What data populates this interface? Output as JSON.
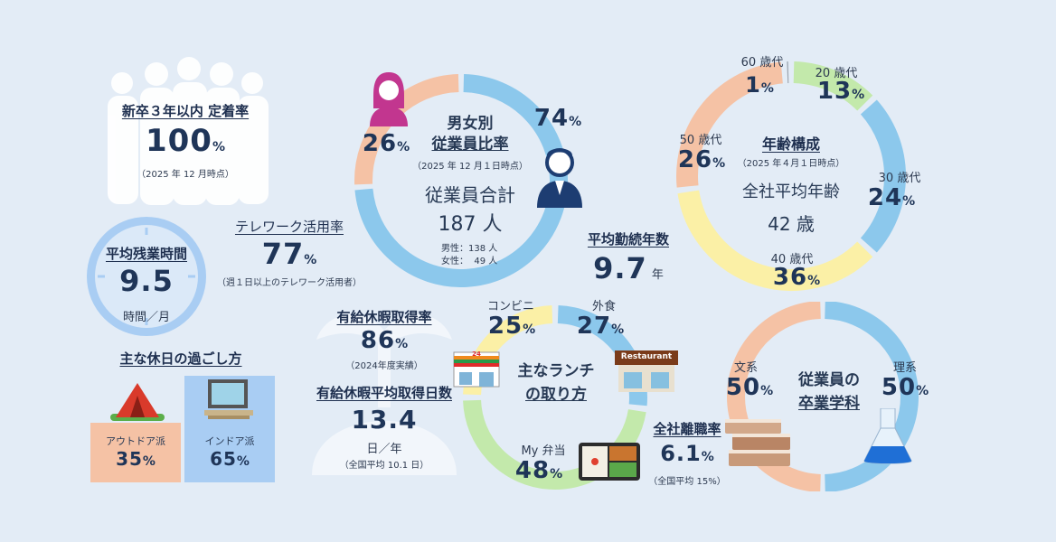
{
  "colors": {
    "bg": "#e3ecf6",
    "blue": "#8cc8ec",
    "peach": "#f5c2a5",
    "green": "#c3e9ab",
    "yellow": "#fbf0a6",
    "gray": "#9aa3ad",
    "lightblue": "#a9cdf3"
  },
  "retention": {
    "title": "新卒３年以内 定着率",
    "value": "100",
    "unit": "%",
    "note": "（2025 年 12 月時点）"
  },
  "overtime": {
    "title": "平均残業時間",
    "value": "9.5",
    "unit": "時間／月"
  },
  "telework": {
    "title": "テレワーク活用率",
    "value": "77",
    "unit": "%",
    "note": "（週１日以上のテレワーク活用者）"
  },
  "holiday": {
    "title": "主な休日の過ごし方",
    "outdoor_label": "アウトドア派",
    "outdoor_value": "35",
    "indoor_label": "インドア派",
    "indoor_value": "65",
    "unit": "%"
  },
  "gender": {
    "title1": "男女別",
    "title2": "従業員比率",
    "note": "（2025 年 12 月１日時点）",
    "female_pct": "26",
    "male_pct": "74",
    "unit": "%",
    "total_label": "従業員合計",
    "total_value": "187 人",
    "male_count": "男性：138 人",
    "female_count": "女性：  49 人",
    "female_value": 26,
    "male_value": 74
  },
  "tenure": {
    "title": "平均勤続年数",
    "value": "9.7",
    "unit": "年"
  },
  "age": {
    "title": "年齢構成",
    "note": "（2025 年４月１日時点）",
    "avg_label": "全社平均年齢",
    "avg_value": "42 歳",
    "unit": "%",
    "groups": [
      {
        "label": "20 歳代",
        "pct": "13",
        "value": 13
      },
      {
        "label": "30 歳代",
        "pct": "24",
        "value": 24
      },
      {
        "label": "40 歳代",
        "pct": "36",
        "value": 36
      },
      {
        "label": "50 歳代",
        "pct": "26",
        "value": 26
      },
      {
        "label": "60 歳代",
        "pct": "1",
        "value": 1
      }
    ]
  },
  "paid_leave": {
    "title": "有給休暇取得率",
    "value": "86",
    "unit": "%",
    "note": "（2024年度実績）",
    "days_title": "有給休暇平均取得日数",
    "days_value": "13.4",
    "days_unit": "日／年",
    "days_note": "（全国平均 10.1 日）"
  },
  "lunch": {
    "title1": "主なランチ",
    "title2": "の取り方",
    "unit": "%",
    "store_sign": "Restaurant",
    "conv_sign": "24",
    "items": [
      {
        "label": "外食",
        "pct": "27",
        "value": 27
      },
      {
        "label": "My 弁当",
        "pct": "48",
        "value": 48
      },
      {
        "label": "コンビニ",
        "pct": "25",
        "value": 25
      }
    ]
  },
  "turnover": {
    "title": "全社離職率",
    "value": "6.1",
    "unit": "%",
    "note": "（全国平均 15%）"
  },
  "major": {
    "title1": "従業員の",
    "title2": "卒業学科",
    "arts_label": "文系",
    "arts_pct": "50",
    "sci_label": "理系",
    "sci_pct": "50",
    "unit": "%",
    "arts_value": 50,
    "sci_value": 50
  }
}
